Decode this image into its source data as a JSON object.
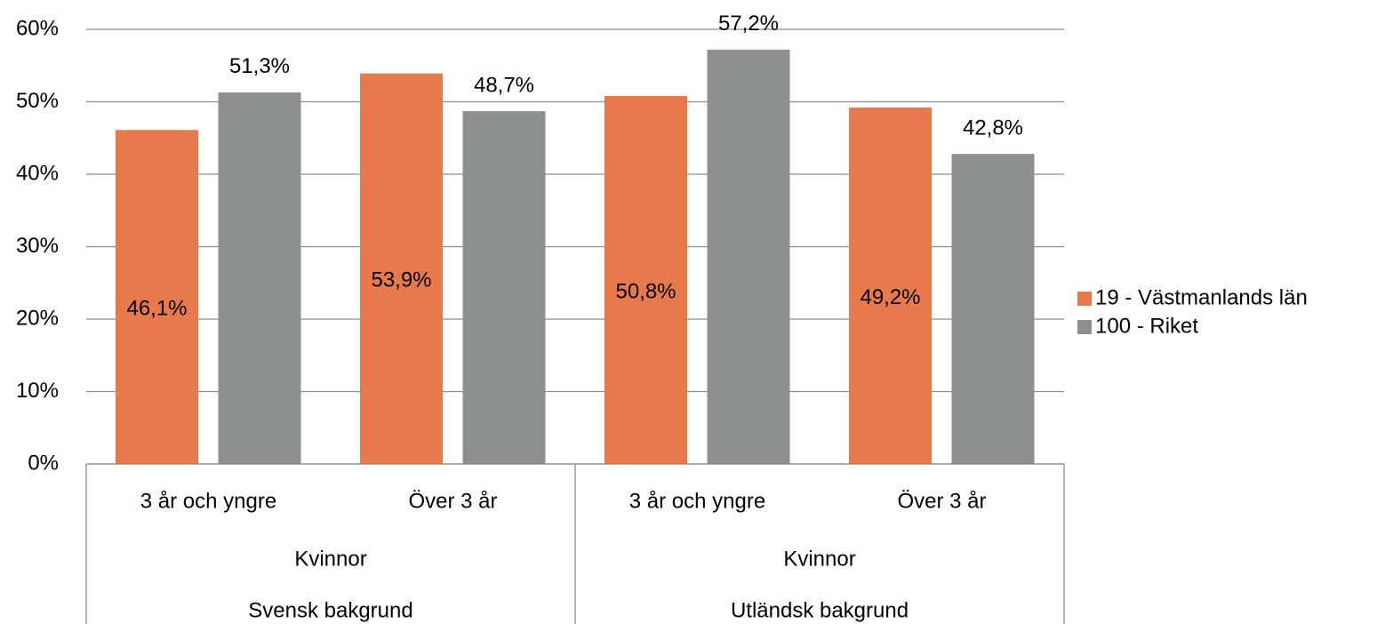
{
  "chart_data": {
    "type": "bar",
    "categories": [
      "3 år och yngre",
      "Över 3 år",
      "3 år och yngre",
      "Över 3 år"
    ],
    "category_levels": [
      [
        "Kvinnor",
        "Kvinnor"
      ],
      [
        "Svensk bakgrund",
        "Utländsk bakgrund"
      ]
    ],
    "series": [
      {
        "name": "19 - Västmanlands län",
        "color": "#e8794d",
        "values": [
          46.1,
          53.9,
          50.8,
          49.2
        ],
        "value_labels": [
          "46,1%",
          "53,9%",
          "50,8%",
          "49,2%"
        ]
      },
      {
        "name": "100 - Riket",
        "color": "#8c918f",
        "values": [
          51.3,
          48.7,
          57.2,
          42.8
        ],
        "value_labels": [
          "51,3%",
          "48,7%",
          "57,2%",
          "42,8%"
        ]
      }
    ],
    "ylim": [
      0,
      60
    ],
    "yticks": [
      {
        "value": 0,
        "label": "0%"
      },
      {
        "value": 10,
        "label": "10%"
      },
      {
        "value": 20,
        "label": "20%"
      },
      {
        "value": 30,
        "label": "30%"
      },
      {
        "value": 40,
        "label": "40%"
      },
      {
        "value": 50,
        "label": "50%"
      },
      {
        "value": 60,
        "label": "60%"
      }
    ],
    "grid": true,
    "legend": "right"
  }
}
